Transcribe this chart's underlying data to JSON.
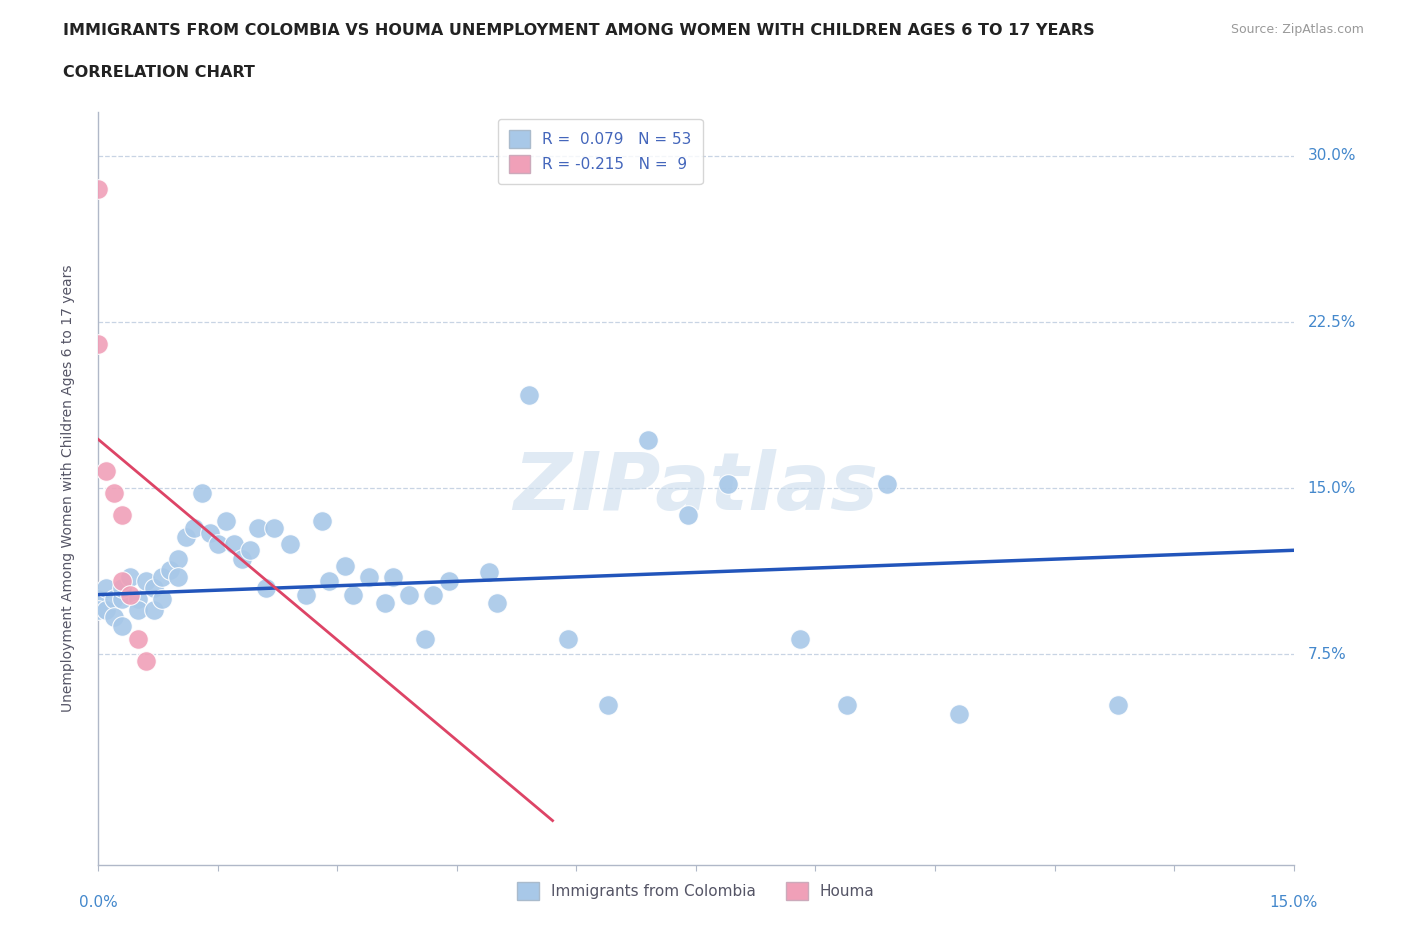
{
  "title": "IMMIGRANTS FROM COLOMBIA VS HOUMA UNEMPLOYMENT AMONG WOMEN WITH CHILDREN AGES 6 TO 17 YEARS",
  "subtitle": "CORRELATION CHART",
  "source": "Source: ZipAtlas.com",
  "xmin": 0.0,
  "xmax": 0.15,
  "ymin": -0.02,
  "ymax": 0.32,
  "color_blue": "#a8c8e8",
  "color_pink": "#f0a0b8",
  "line_blue": "#2255bb",
  "line_pink": "#dd4466",
  "watermark": "ZIPatlas",
  "blue_points": [
    [
      0.0,
      0.1
    ],
    [
      0.0,
      0.095
    ],
    [
      0.001,
      0.105
    ],
    [
      0.001,
      0.095
    ],
    [
      0.002,
      0.1
    ],
    [
      0.002,
      0.092
    ],
    [
      0.003,
      0.1
    ],
    [
      0.003,
      0.088
    ],
    [
      0.003,
      0.105
    ],
    [
      0.004,
      0.11
    ],
    [
      0.005,
      0.1
    ],
    [
      0.005,
      0.095
    ],
    [
      0.006,
      0.108
    ],
    [
      0.007,
      0.105
    ],
    [
      0.007,
      0.095
    ],
    [
      0.008,
      0.11
    ],
    [
      0.008,
      0.1
    ],
    [
      0.009,
      0.113
    ],
    [
      0.01,
      0.118
    ],
    [
      0.01,
      0.11
    ],
    [
      0.011,
      0.128
    ],
    [
      0.012,
      0.132
    ],
    [
      0.013,
      0.148
    ],
    [
      0.014,
      0.13
    ],
    [
      0.015,
      0.125
    ],
    [
      0.016,
      0.135
    ],
    [
      0.017,
      0.125
    ],
    [
      0.018,
      0.118
    ],
    [
      0.019,
      0.122
    ],
    [
      0.02,
      0.132
    ],
    [
      0.021,
      0.105
    ],
    [
      0.022,
      0.132
    ],
    [
      0.024,
      0.125
    ],
    [
      0.026,
      0.102
    ],
    [
      0.028,
      0.135
    ],
    [
      0.029,
      0.108
    ],
    [
      0.031,
      0.115
    ],
    [
      0.032,
      0.102
    ],
    [
      0.034,
      0.11
    ],
    [
      0.036,
      0.098
    ],
    [
      0.037,
      0.11
    ],
    [
      0.039,
      0.102
    ],
    [
      0.041,
      0.082
    ],
    [
      0.042,
      0.102
    ],
    [
      0.044,
      0.108
    ],
    [
      0.049,
      0.112
    ],
    [
      0.05,
      0.098
    ],
    [
      0.054,
      0.192
    ],
    [
      0.059,
      0.082
    ],
    [
      0.064,
      0.052
    ],
    [
      0.069,
      0.172
    ],
    [
      0.074,
      0.138
    ],
    [
      0.079,
      0.152
    ],
    [
      0.088,
      0.082
    ],
    [
      0.094,
      0.052
    ],
    [
      0.099,
      0.152
    ],
    [
      0.108,
      0.048
    ],
    [
      0.128,
      0.052
    ]
  ],
  "pink_points": [
    [
      0.0,
      0.285
    ],
    [
      0.0,
      0.215
    ],
    [
      0.001,
      0.158
    ],
    [
      0.002,
      0.148
    ],
    [
      0.003,
      0.138
    ],
    [
      0.003,
      0.108
    ],
    [
      0.004,
      0.102
    ],
    [
      0.005,
      0.082
    ],
    [
      0.006,
      0.072
    ]
  ],
  "blue_line_x": [
    0.0,
    0.15
  ],
  "blue_line_y": [
    0.102,
    0.122
  ],
  "pink_line_x": [
    0.0,
    0.057
  ],
  "pink_line_y": [
    0.172,
    0.0
  ]
}
